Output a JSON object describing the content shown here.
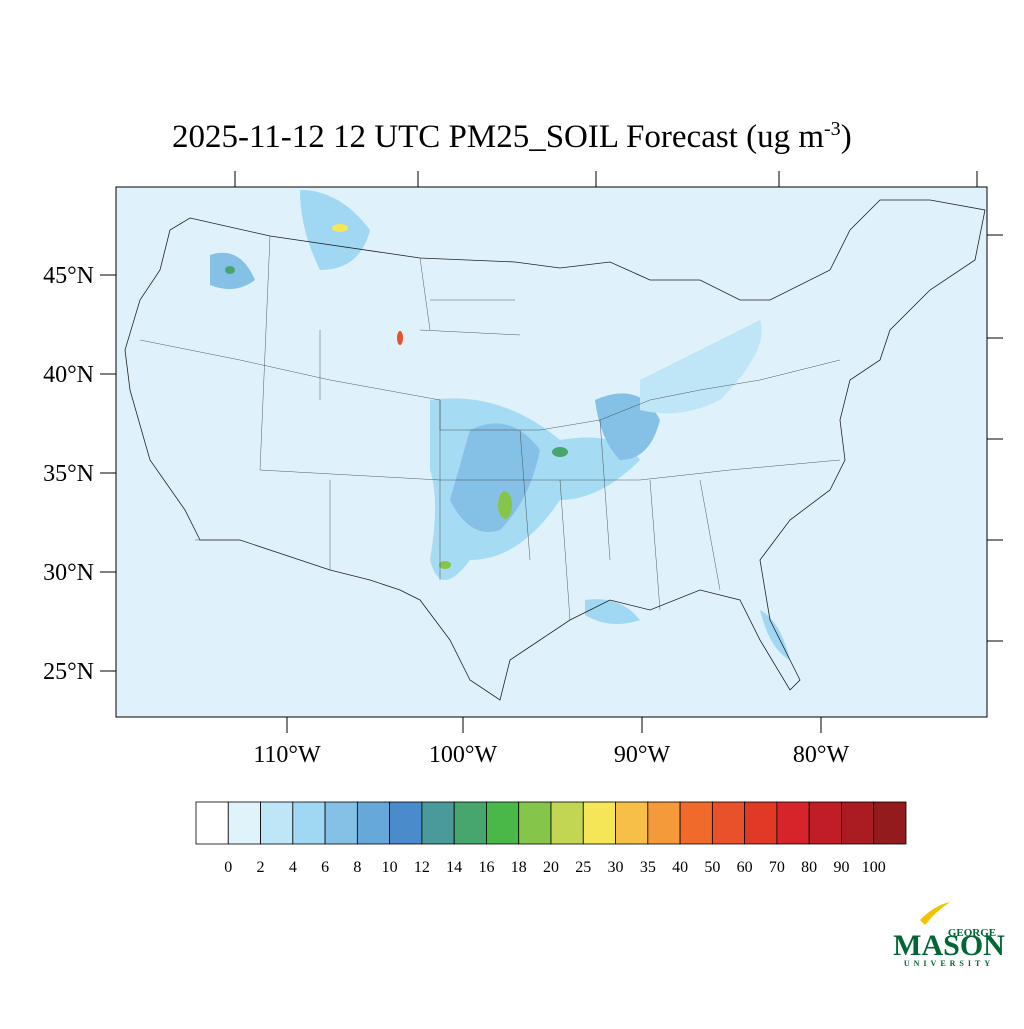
{
  "title": {
    "main": "2025-11-12 12 UTC PM25_SOIL Forecast (ug m",
    "superscript": "-3",
    "close": ")"
  },
  "lat_labels": [
    "45°N",
    "40°N",
    "35°N",
    "30°N",
    "25°N"
  ],
  "lon_labels": [
    "110°W",
    "100°W",
    "90°W",
    "80°W"
  ],
  "colorbar": {
    "levels": [
      0,
      2,
      4,
      6,
      8,
      10,
      12,
      14,
      16,
      18,
      20,
      25,
      30,
      35,
      40,
      50,
      60,
      70,
      80,
      90,
      100
    ],
    "colors": [
      "#ffffff",
      "#e0f3fb",
      "#bfe6f7",
      "#a0d8f3",
      "#85c1e6",
      "#66a8d9",
      "#4a8ccb",
      "#4a9a9a",
      "#47a56e",
      "#4ab848",
      "#85c64a",
      "#c2d654",
      "#f5e658",
      "#f7bf47",
      "#f59a3a",
      "#f06b2b",
      "#e9512b",
      "#e03a27",
      "#d7232a",
      "#c01d27",
      "#ab1b22",
      "#931a1d"
    ]
  },
  "logo": {
    "top": "GEORGE",
    "main": "MASON",
    "bottom": "UNIVERSITY"
  }
}
